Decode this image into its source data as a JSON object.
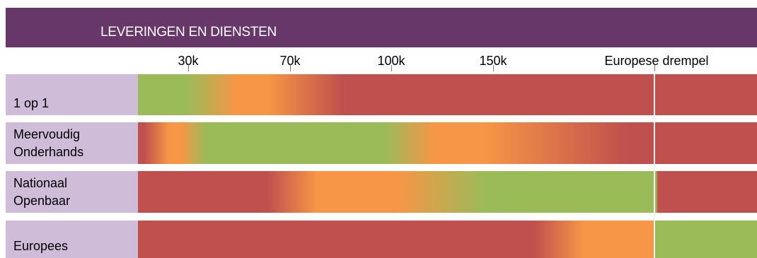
{
  "header": {
    "title": "LEVERINGEN EN DIENSTEN"
  },
  "colors": {
    "header_bg": "#663768",
    "label_bg": "#cfbcd9",
    "green": "#9bbb59",
    "orange": "#f79646",
    "red": "#c0504d"
  },
  "chart_data": {
    "type": "heatmap",
    "title": "LEVERINGEN EN DIENSTEN",
    "tick_labels": [
      {
        "label": "30k"
      },
      {
        "label": "70k"
      },
      {
        "label": "100k"
      },
      {
        "label": "150k"
      },
      {
        "label": "Europese drempel"
      }
    ],
    "rows": [
      {
        "label": "1 op 1",
        "segments": [
          {
            "from": 0.0,
            "to": 0.08,
            "color": "green"
          },
          {
            "from": 0.16,
            "to": 0.21,
            "color": "orange"
          },
          {
            "from": 0.33,
            "to": 1.0,
            "color": "red"
          }
        ]
      },
      {
        "label": "Meervoudig\nOnderhands",
        "segments": [
          {
            "from": 0.0,
            "to": 0.01,
            "color": "red"
          },
          {
            "from": 0.05,
            "to": 0.07,
            "color": "orange"
          },
          {
            "from": 0.11,
            "to": 0.4,
            "color": "green"
          },
          {
            "from": 0.48,
            "to": 0.56,
            "color": "orange"
          },
          {
            "from": 0.79,
            "to": 1.0,
            "color": "red"
          }
        ]
      },
      {
        "label": "Nationaal\nOpenbaar",
        "segments": [
          {
            "from": 0.0,
            "to": 0.21,
            "color": "red"
          },
          {
            "from": 0.29,
            "to": 0.42,
            "color": "orange"
          },
          {
            "from": 0.56,
            "to": 0.837,
            "color": "green"
          },
          {
            "from": 0.84,
            "to": 1.0,
            "color": "red"
          }
        ]
      },
      {
        "label": "Europees",
        "segments": [
          {
            "from": 0.0,
            "to": 0.64,
            "color": "red"
          },
          {
            "from": 0.72,
            "to": 0.832,
            "color": "orange"
          },
          {
            "from": 0.836,
            "to": 1.0,
            "color": "green"
          }
        ]
      }
    ]
  }
}
